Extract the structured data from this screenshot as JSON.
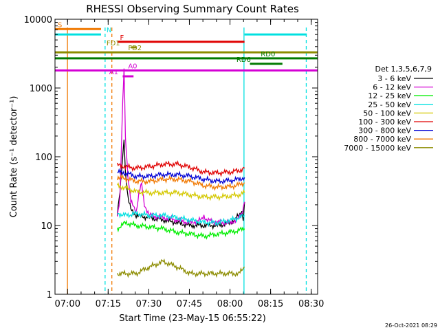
{
  "chart_data": {
    "type": "line",
    "title": "RHESSI Observing Summary Count Rates",
    "xlabel": "Start Time (23-May-15 06:55:22)",
    "ylabel": "Count Rate (s⁻¹ detector⁻¹)",
    "yscale": "log",
    "ylim": [
      1,
      10000
    ],
    "xlim_minutes": [
      0,
      97
    ],
    "xticks": [
      "07:00",
      "07:15",
      "07:30",
      "07:45",
      "08:00",
      "08:15",
      "08:30"
    ],
    "yticks": [
      "1",
      "10",
      "100",
      "1000",
      "10000"
    ],
    "legend_title": "Det 1,3,5,6,7,9",
    "legend_placement": "right",
    "series": [
      {
        "name": "3 - 6 keV",
        "color": "#000000",
        "points": [
          [
            23,
            15
          ],
          [
            24,
            30
          ],
          [
            25,
            100
          ],
          [
            25.5,
            180
          ],
          [
            26,
            60
          ],
          [
            27,
            25
          ],
          [
            28,
            17
          ],
          [
            30,
            14
          ],
          [
            35,
            13
          ],
          [
            40,
            12
          ],
          [
            45,
            11
          ],
          [
            50,
            10
          ],
          [
            55,
            10
          ],
          [
            60,
            10
          ],
          [
            65,
            11
          ],
          [
            68,
            14
          ],
          [
            69,
            16
          ],
          [
            69.5,
            12
          ],
          [
            70,
            22
          ]
        ]
      },
      {
        "name": "6 - 12 keV",
        "color": "#d400d4",
        "points": [
          [
            23,
            14
          ],
          [
            24,
            25
          ],
          [
            25,
            600
          ],
          [
            25.5,
            2000
          ],
          [
            26,
            200
          ],
          [
            27,
            50
          ],
          [
            28,
            22
          ],
          [
            30,
            16
          ],
          [
            31,
            30
          ],
          [
            32,
            40
          ],
          [
            33,
            20
          ],
          [
            35,
            14
          ],
          [
            40,
            13
          ],
          [
            45,
            12
          ],
          [
            50,
            11
          ],
          [
            54,
            12
          ],
          [
            55,
            14
          ],
          [
            56,
            12
          ],
          [
            60,
            11
          ],
          [
            65,
            11
          ],
          [
            68,
            13
          ],
          [
            69,
            15
          ],
          [
            70,
            22
          ]
        ]
      },
      {
        "name": "12 - 25 keV",
        "color": "#00ee00",
        "points": [
          [
            23,
            9
          ],
          [
            26,
            11
          ],
          [
            30,
            10
          ],
          [
            35,
            9.5
          ],
          [
            40,
            9
          ],
          [
            45,
            8
          ],
          [
            50,
            7.5
          ],
          [
            55,
            7
          ],
          [
            60,
            7.5
          ],
          [
            65,
            8
          ],
          [
            68,
            8.5
          ],
          [
            70,
            9
          ]
        ]
      },
      {
        "name": "25 - 50 keV",
        "color": "#00e0e0",
        "points": [
          [
            23,
            15
          ],
          [
            26,
            14
          ],
          [
            30,
            15
          ],
          [
            35,
            14
          ],
          [
            40,
            14
          ],
          [
            45,
            13
          ],
          [
            50,
            12
          ],
          [
            55,
            11
          ],
          [
            60,
            11
          ],
          [
            65,
            12
          ],
          [
            68,
            13
          ],
          [
            70,
            14
          ]
        ]
      },
      {
        "name": "50 - 100 keV",
        "color": "#d4c800",
        "points": [
          [
            23,
            38
          ],
          [
            26,
            35
          ],
          [
            30,
            31
          ],
          [
            35,
            30
          ],
          [
            40,
            30
          ],
          [
            45,
            30
          ],
          [
            50,
            28
          ],
          [
            55,
            26
          ],
          [
            60,
            26
          ],
          [
            65,
            27
          ],
          [
            68,
            28
          ],
          [
            70,
            30
          ]
        ]
      },
      {
        "name": "100 - 300 keV",
        "color": "#e00000",
        "points": [
          [
            23,
            75
          ],
          [
            26,
            72
          ],
          [
            30,
            68
          ],
          [
            35,
            72
          ],
          [
            40,
            78
          ],
          [
            45,
            78
          ],
          [
            50,
            70
          ],
          [
            55,
            60
          ],
          [
            60,
            58
          ],
          [
            65,
            60
          ],
          [
            68,
            63
          ],
          [
            70,
            68
          ]
        ]
      },
      {
        "name": "300 - 800 keV",
        "color": "#0000d4",
        "points": [
          [
            23,
            60
          ],
          [
            26,
            58
          ],
          [
            30,
            52
          ],
          [
            35,
            52
          ],
          [
            40,
            55
          ],
          [
            45,
            55
          ],
          [
            50,
            52
          ],
          [
            55,
            47
          ],
          [
            60,
            44
          ],
          [
            65,
            45
          ],
          [
            68,
            47
          ],
          [
            70,
            50
          ]
        ]
      },
      {
        "name": "800 - 7000 keV",
        "color": "#f07800",
        "points": [
          [
            23,
            50
          ],
          [
            26,
            48
          ],
          [
            30,
            44
          ],
          [
            35,
            44
          ],
          [
            40,
            47
          ],
          [
            45,
            47
          ],
          [
            50,
            44
          ],
          [
            55,
            38
          ],
          [
            60,
            36
          ],
          [
            65,
            37
          ],
          [
            68,
            39
          ],
          [
            70,
            42
          ]
        ]
      },
      {
        "name": "7000 - 15000 keV",
        "color": "#8c8c00",
        "points": [
          [
            23,
            2
          ],
          [
            26,
            2
          ],
          [
            30,
            2
          ],
          [
            35,
            2.5
          ],
          [
            40,
            3
          ],
          [
            45,
            2.5
          ],
          [
            50,
            2
          ],
          [
            55,
            2
          ],
          [
            60,
            2
          ],
          [
            65,
            2
          ],
          [
            68,
            2
          ],
          [
            70,
            2.5
          ]
        ]
      }
    ],
    "flags": [
      {
        "label": "S",
        "color": "#f07800",
        "y": 7200,
        "x0": 0,
        "x1": 17
      },
      {
        "label": "N",
        "color": "#00e0e0",
        "y": 6000,
        "x0": 0,
        "x1": 17
      },
      {
        "label": "N",
        "color": "#00e0e0",
        "y": 6000,
        "x0": 70,
        "x1": 93
      },
      {
        "label": "F",
        "color": "#e00000",
        "y": 4700,
        "x0": 23,
        "x1": 70
      },
      {
        "label": "FD1",
        "color": "#8c8c00",
        "y": 3900,
        "x0": 28,
        "x1": 30
      },
      {
        "label": "FD2",
        "color": "#8c8c00",
        "y": 3300,
        "x0": 0,
        "x1": 97
      },
      {
        "label": "RD0",
        "color": "#007a00",
        "y": 2700,
        "x0": 0,
        "x1": 97
      },
      {
        "label": "RD6",
        "color": "#007a00",
        "y": 2250,
        "x0": 72,
        "x1": 84
      },
      {
        "label": "A0",
        "color": "#d400d4",
        "y": 1800,
        "x0": 0,
        "x1": 97
      },
      {
        "label": "A1",
        "color": "#d400d4",
        "y": 1480,
        "x0": 25,
        "x1": 29
      }
    ],
    "vlines": [
      {
        "x": 4.6,
        "color": "#f07800",
        "style": "solid"
      },
      {
        "x": 18.5,
        "color": "#00e0e0",
        "style": "dashed"
      },
      {
        "x": 21,
        "color": "#f07800",
        "style": "dashed"
      },
      {
        "x": 69.8,
        "color": "#00e0e0",
        "style": "solid"
      },
      {
        "x": 92.8,
        "color": "#00e0e0",
        "style": "dashed"
      }
    ],
    "footer": "26-Oct-2021 08:29"
  }
}
